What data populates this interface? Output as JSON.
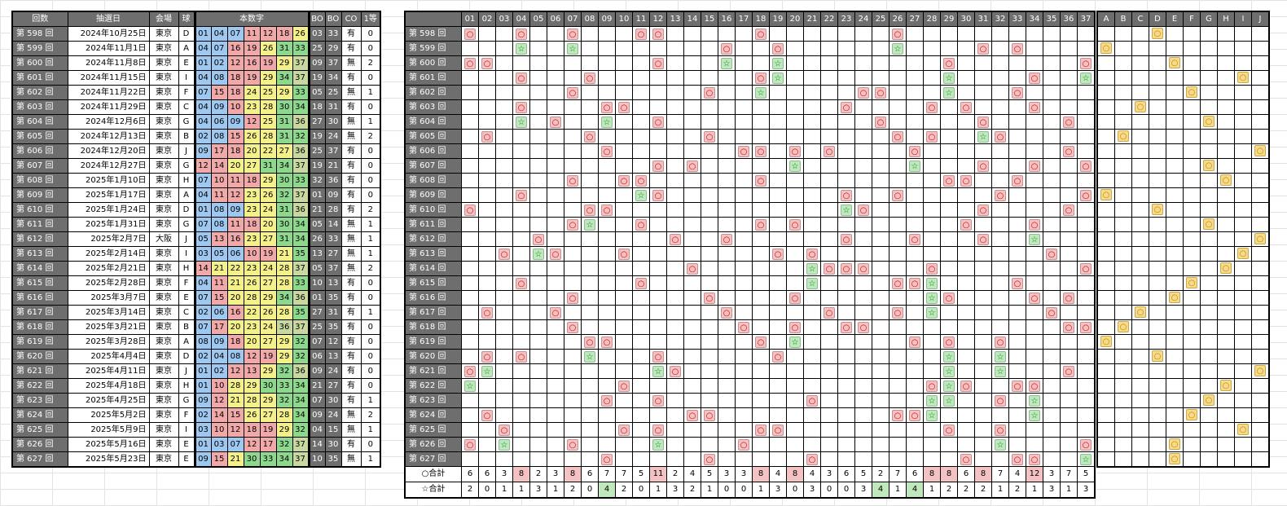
{
  "colors": {
    "header_bg": "#6e6e6e",
    "blue": "#9ec8f0",
    "red": "#f0a8a8",
    "yellow": "#f4f08a",
    "green": "#8ed88e",
    "olive": "#c8d8a0",
    "circle_mark": "#f4c2c2",
    "star_mark": "#bfe8bf",
    "letter_mark": "#f6dc8a"
  },
  "left_headers": [
    "回数",
    "抽選日",
    "会場",
    "球",
    "本数字",
    "BO",
    "BO",
    "CO",
    "1等"
  ],
  "rows": [
    {
      "kai": "第 598 回",
      "date": "2024年10月25日",
      "venue": "東京",
      "ball": "D",
      "nums": [
        "01",
        "04",
        "07",
        "11",
        "12",
        "18",
        "26"
      ],
      "bo1": "03",
      "bo2": "33",
      "co": "有",
      "win": "0"
    },
    {
      "kai": "第 599 回",
      "date": "2024年11月1日",
      "venue": "東京",
      "ball": "A",
      "nums": [
        "04",
        "07",
        "16",
        "19",
        "26",
        "31",
        "33"
      ],
      "bo1": "25",
      "bo2": "29",
      "co": "有",
      "win": "0"
    },
    {
      "kai": "第 600 回",
      "date": "2024年11月8日",
      "venue": "東京",
      "ball": "E",
      "nums": [
        "01",
        "02",
        "12",
        "16",
        "19",
        "29",
        "37"
      ],
      "bo1": "09",
      "bo2": "37",
      "co": "無",
      "win": "2"
    },
    {
      "kai": "第 601 回",
      "date": "2024年11月15日",
      "venue": "東京",
      "ball": "I",
      "nums": [
        "04",
        "08",
        "18",
        "19",
        "29",
        "34",
        "37"
      ],
      "bo1": "19",
      "bo2": "34",
      "co": "有",
      "win": "0"
    },
    {
      "kai": "第 602 回",
      "date": "2024年11月22日",
      "venue": "東京",
      "ball": "F",
      "nums": [
        "07",
        "15",
        "18",
        "24",
        "25",
        "29",
        "33"
      ],
      "bo1": "05",
      "bo2": "25",
      "co": "無",
      "win": "1"
    },
    {
      "kai": "第 603 回",
      "date": "2024年11月29日",
      "venue": "東京",
      "ball": "C",
      "nums": [
        "04",
        "09",
        "10",
        "23",
        "28",
        "30",
        "34"
      ],
      "bo1": "18",
      "bo2": "31",
      "co": "有",
      "win": "0"
    },
    {
      "kai": "第 604 回",
      "date": "2024年12月6日",
      "venue": "東京",
      "ball": "G",
      "nums": [
        "04",
        "06",
        "09",
        "12",
        "25",
        "31",
        "36"
      ],
      "bo1": "27",
      "bo2": "30",
      "co": "無",
      "win": "1"
    },
    {
      "kai": "第 605 回",
      "date": "2024年12月13日",
      "venue": "東京",
      "ball": "B",
      "nums": [
        "02",
        "08",
        "15",
        "26",
        "28",
        "31",
        "32"
      ],
      "bo1": "19",
      "bo2": "24",
      "co": "無",
      "win": "2"
    },
    {
      "kai": "第 606 回",
      "date": "2024年12月20日",
      "venue": "東京",
      "ball": "J",
      "nums": [
        "09",
        "17",
        "18",
        "20",
        "22",
        "27",
        "36"
      ],
      "bo1": "25",
      "bo2": "37",
      "co": "有",
      "win": "0"
    },
    {
      "kai": "第 607 回",
      "date": "2024年12月27日",
      "venue": "東京",
      "ball": "G",
      "nums": [
        "12",
        "14",
        "20",
        "27",
        "31",
        "34",
        "37"
      ],
      "bo1": "19",
      "bo2": "21",
      "co": "有",
      "win": "0"
    },
    {
      "kai": "第 608 回",
      "date": "2025年1月10日",
      "venue": "東京",
      "ball": "H",
      "nums": [
        "07",
        "10",
        "11",
        "18",
        "29",
        "30",
        "33"
      ],
      "bo1": "32",
      "bo2": "36",
      "co": "有",
      "win": "0"
    },
    {
      "kai": "第 609 回",
      "date": "2025年1月17日",
      "venue": "東京",
      "ball": "A",
      "nums": [
        "04",
        "11",
        "12",
        "23",
        "26",
        "32",
        "37"
      ],
      "bo1": "01",
      "bo2": "09",
      "co": "有",
      "win": "0"
    },
    {
      "kai": "第 610 回",
      "date": "2025年1月24日",
      "venue": "東京",
      "ball": "D",
      "nums": [
        "01",
        "08",
        "09",
        "23",
        "24",
        "31",
        "36"
      ],
      "bo1": "21",
      "bo2": "28",
      "co": "有",
      "win": "2"
    },
    {
      "kai": "第 611 回",
      "date": "2025年1月31日",
      "venue": "東京",
      "ball": "G",
      "nums": [
        "07",
        "08",
        "11",
        "18",
        "20",
        "30",
        "34"
      ],
      "bo1": "05",
      "bo2": "14",
      "co": "無",
      "win": "1"
    },
    {
      "kai": "第 612 回",
      "date": "2025年2月7日",
      "venue": "大阪",
      "ball": "J",
      "nums": [
        "05",
        "13",
        "16",
        "23",
        "27",
        "31",
        "34"
      ],
      "bo1": "26",
      "bo2": "33",
      "co": "無",
      "win": "1"
    },
    {
      "kai": "第 613 回",
      "date": "2025年2月14日",
      "venue": "東京",
      "ball": "I",
      "nums": [
        "03",
        "05",
        "06",
        "10",
        "19",
        "21",
        "35"
      ],
      "bo1": "13",
      "bo2": "27",
      "co": "無",
      "win": "1"
    },
    {
      "kai": "第 614 回",
      "date": "2025年2月21日",
      "venue": "東京",
      "ball": "H",
      "nums": [
        "14",
        "21",
        "22",
        "23",
        "24",
        "28",
        "37"
      ],
      "bo1": "05",
      "bo2": "37",
      "co": "無",
      "win": "2"
    },
    {
      "kai": "第 615 回",
      "date": "2025年2月28日",
      "venue": "東京",
      "ball": "F",
      "nums": [
        "04",
        "11",
        "21",
        "26",
        "27",
        "28",
        "33"
      ],
      "bo1": "10",
      "bo2": "13",
      "co": "有",
      "win": "0"
    },
    {
      "kai": "第 616 回",
      "date": "2025年3月7日",
      "venue": "東京",
      "ball": "E",
      "nums": [
        "07",
        "15",
        "20",
        "28",
        "29",
        "34",
        "36"
      ],
      "bo1": "01",
      "bo2": "35",
      "co": "有",
      "win": "0"
    },
    {
      "kai": "第 617 回",
      "date": "2025年3月14日",
      "venue": "東京",
      "ball": "C",
      "nums": [
        "02",
        "06",
        "16",
        "22",
        "26",
        "28",
        "35"
      ],
      "bo1": "27",
      "bo2": "31",
      "co": "有",
      "win": "1"
    },
    {
      "kai": "第 618 回",
      "date": "2025年3月21日",
      "venue": "東京",
      "ball": "B",
      "nums": [
        "07",
        "17",
        "20",
        "23",
        "24",
        "36",
        "37"
      ],
      "bo1": "25",
      "bo2": "35",
      "co": "有",
      "win": "0"
    },
    {
      "kai": "第 619 回",
      "date": "2025年3月28日",
      "venue": "東京",
      "ball": "A",
      "nums": [
        "08",
        "09",
        "18",
        "20",
        "27",
        "29",
        "32"
      ],
      "bo1": "07",
      "bo2": "12",
      "co": "有",
      "win": "0"
    },
    {
      "kai": "第 620 回",
      "date": "2025年4月4日",
      "venue": "東京",
      "ball": "D",
      "nums": [
        "02",
        "04",
        "08",
        "12",
        "19",
        "29",
        "32"
      ],
      "bo1": "06",
      "bo2": "13",
      "co": "有",
      "win": "0"
    },
    {
      "kai": "第 621 回",
      "date": "2025年4月11日",
      "venue": "東京",
      "ball": "J",
      "nums": [
        "01",
        "02",
        "12",
        "13",
        "29",
        "32",
        "36"
      ],
      "bo1": "09",
      "bo2": "24",
      "co": "有",
      "win": "0"
    },
    {
      "kai": "第 622 回",
      "date": "2025年4月18日",
      "venue": "東京",
      "ball": "H",
      "nums": [
        "01",
        "10",
        "28",
        "29",
        "30",
        "33",
        "34"
      ],
      "bo1": "21",
      "bo2": "27",
      "co": "有",
      "win": "0"
    },
    {
      "kai": "第 623 回",
      "date": "2025年4月25日",
      "venue": "東京",
      "ball": "G",
      "nums": [
        "09",
        "12",
        "21",
        "28",
        "29",
        "32",
        "34"
      ],
      "bo1": "07",
      "bo2": "30",
      "co": "有",
      "win": "1"
    },
    {
      "kai": "第 624 回",
      "date": "2025年5月2日",
      "venue": "東京",
      "ball": "F",
      "nums": [
        "02",
        "14",
        "15",
        "26",
        "27",
        "28",
        "34"
      ],
      "bo1": "09",
      "bo2": "24",
      "co": "無",
      "win": "2"
    },
    {
      "kai": "第 625 回",
      "date": "2025年5月9日",
      "venue": "東京",
      "ball": "I",
      "nums": [
        "03",
        "10",
        "12",
        "18",
        "19",
        "29",
        "32"
      ],
      "bo1": "04",
      "bo2": "15",
      "co": "無",
      "win": "1"
    },
    {
      "kai": "第 626 回",
      "date": "2025年5月16日",
      "venue": "東京",
      "ball": "E",
      "nums": [
        "01",
        "03",
        "07",
        "12",
        "17",
        "32",
        "37"
      ],
      "bo1": "14",
      "bo2": "30",
      "co": "有",
      "win": "0"
    },
    {
      "kai": "第 627 回",
      "date": "2025年5月23日",
      "venue": "東京",
      "ball": "E",
      "nums": [
        "09",
        "15",
        "21",
        "30",
        "33",
        "34",
        "37"
      ],
      "bo1": "10",
      "bo2": "35",
      "co": "無",
      "win": "1"
    }
  ],
  "mid_headers": [
    "01",
    "02",
    "03",
    "04",
    "05",
    "06",
    "07",
    "08",
    "09",
    "10",
    "11",
    "12",
    "13",
    "14",
    "15",
    "16",
    "17",
    "18",
    "19",
    "20",
    "21",
    "22",
    "23",
    "24",
    "25",
    "26",
    "27",
    "28",
    "29",
    "30",
    "31",
    "32",
    "33",
    "34",
    "35",
    "36",
    "37"
  ],
  "marks": {
    "circle": "○",
    "star": "☆"
  },
  "totals": {
    "circle_label": "○合計",
    "star_label": "☆合計",
    "circle": [
      "6",
      "6",
      "3",
      "8",
      "2",
      "3",
      "8",
      "6",
      "7",
      "7",
      "5",
      "11",
      "2",
      "4",
      "5",
      "3",
      "3",
      "8",
      "4",
      "8",
      "4",
      "3",
      "6",
      "5",
      "2",
      "7",
      "6",
      "8",
      "8",
      "6",
      "8",
      "7",
      "4",
      "12",
      "3",
      "7",
      "5"
    ],
    "star": [
      "2",
      "0",
      "1",
      "1",
      "3",
      "1",
      "2",
      "0",
      "4",
      "2",
      "0",
      "1",
      "3",
      "2",
      "1",
      "0",
      "0",
      "1",
      "3",
      "0",
      "3",
      "0",
      "0",
      "3",
      "4",
      "1",
      "4",
      "1",
      "2",
      "2",
      "2",
      "1",
      "2",
      "1",
      "3",
      "1",
      "3"
    ]
  },
  "right_headers": [
    "A",
    "B",
    "C",
    "D",
    "E",
    "F",
    "G",
    "H",
    "I",
    "J"
  ],
  "right_mark": "○"
}
